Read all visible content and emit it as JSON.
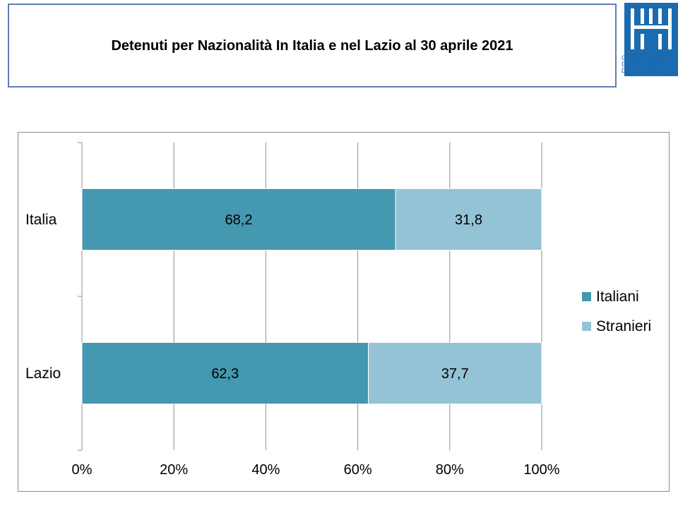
{
  "header": {
    "title": "Detenuti per Nazionalità In Italia e nel Lazio al 30 aprile 2021",
    "logo_lines": [
      "GARANTE",
      "DIRITTI",
      "DETENUTI"
    ]
  },
  "colors": {
    "italiani": "#4498b0",
    "stranieri": "#93c3d5",
    "logo_blue": "#1b6bb0",
    "title_border": "#5b7fb5"
  },
  "chart_data": {
    "type": "bar",
    "orientation": "horizontal",
    "stacked": true,
    "categories": [
      "Italia",
      "Lazio"
    ],
    "series": [
      {
        "name": "Italiani",
        "values": [
          68.2,
          62.3
        ],
        "labels": [
          "68,2",
          "62,3"
        ]
      },
      {
        "name": "Stranieri",
        "values": [
          31.8,
          37.7
        ],
        "labels": [
          "31,8",
          "37,7"
        ]
      }
    ],
    "xlim": [
      0,
      100
    ],
    "x_ticks": [
      "0%",
      "20%",
      "40%",
      "60%",
      "80%",
      "100%"
    ],
    "grid": true,
    "legend_position": "right"
  }
}
